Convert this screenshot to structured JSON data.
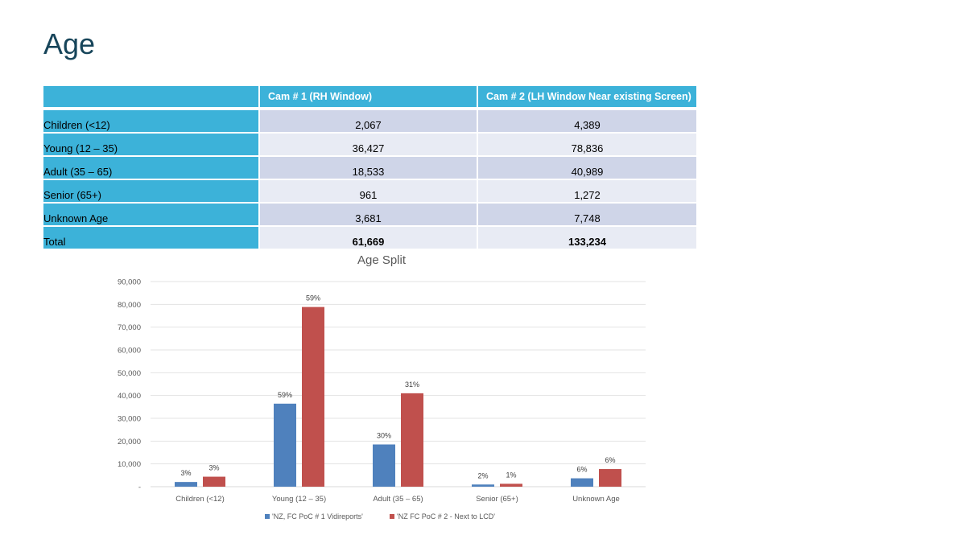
{
  "slide": {
    "title": "Age"
  },
  "table": {
    "headers": [
      "",
      "Cam # 1 (RH Window)",
      "Cam # 2 (LH Window Near existing Screen)"
    ],
    "rows": [
      {
        "label": "Children  (<12)",
        "cam1": "2,067",
        "cam2": "4,389"
      },
      {
        "label": "Young (12 – 35)",
        "cam1": "36,427",
        "cam2": "78,836"
      },
      {
        "label": "Adult (35 – 65)",
        "cam1": "18,533",
        "cam2": "40,989"
      },
      {
        "label": "Senior (65+)",
        "cam1": "961",
        "cam2": "1,272"
      },
      {
        "label": "Unknown Age",
        "cam1": "3,681",
        "cam2": "7,748"
      },
      {
        "label": "Total",
        "cam1": "61,669",
        "cam2": "133,234"
      }
    ]
  },
  "chart_data": {
    "type": "bar",
    "title": "Age Split",
    "categories": [
      "Children  (<12)",
      "Young (12 – 35)",
      "Adult (35 – 65)",
      "Senior (65+)",
      "Unknown Age"
    ],
    "series": [
      {
        "name": "'NZ, FC PoC # 1 Vidireports'",
        "color": "#4f81bd",
        "values": [
          2067,
          36427,
          18533,
          961,
          3681
        ],
        "labels": [
          "3%",
          "59%",
          "30%",
          "2%",
          "6%"
        ]
      },
      {
        "name": "'NZ FC PoC # 2 - Next to LCD'",
        "color": "#c0504d",
        "values": [
          4389,
          78836,
          40989,
          1272,
          7748
        ],
        "labels": [
          "3%",
          "59%",
          "31%",
          "1%",
          "6%"
        ]
      }
    ],
    "yticks": [
      "-",
      "10,000",
      "20,000",
      "30,000",
      "40,000",
      "50,000",
      "60,000",
      "70,000",
      "80,000",
      "90,000"
    ],
    "ylim": [
      0,
      90000
    ],
    "grid": true,
    "legend": "bottom"
  }
}
